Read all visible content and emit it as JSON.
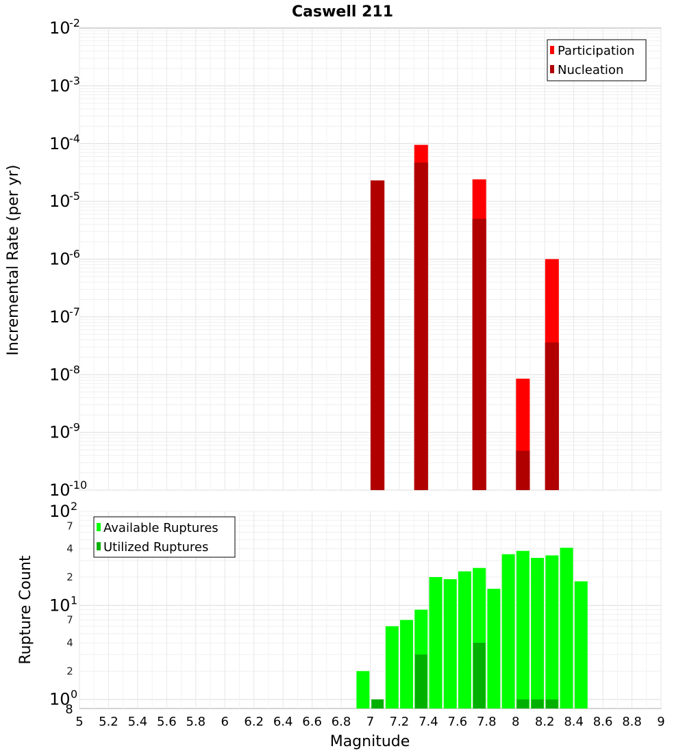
{
  "chart_data": [
    {
      "type": "bar",
      "title": "Caswell 211",
      "xlabel": "Magnitude",
      "ylabel": "Incremental Rate (per yr)",
      "yscale": "log",
      "xlim": [
        5,
        9
      ],
      "ylim": [
        1e-10,
        0.01
      ],
      "x_ticks": [
        "5",
        "5.2",
        "5.4",
        "5.6",
        "5.8",
        "6",
        "6.2",
        "6.4",
        "6.6",
        "6.8",
        "7",
        "7.2",
        "7.4",
        "7.6",
        "7.8",
        "8",
        "8.2",
        "8.4",
        "8.6",
        "8.8",
        "9"
      ],
      "y_ticks": [
        {
          "base": "10",
          "exp": "-2"
        },
        {
          "base": "10",
          "exp": "-3"
        },
        {
          "base": "10",
          "exp": "-4"
        },
        {
          "base": "10",
          "exp": "-5"
        },
        {
          "base": "10",
          "exp": "-6"
        },
        {
          "base": "10",
          "exp": "-7"
        },
        {
          "base": "10",
          "exp": "-8"
        },
        {
          "base": "10",
          "exp": "-9"
        },
        {
          "base": "10",
          "exp": "-10"
        }
      ],
      "legend": {
        "placement": "top-right"
      },
      "series": [
        {
          "name": "Participation",
          "color": "#ff0000",
          "points": [
            {
              "x": 7.05,
              "y": 2.3e-05
            },
            {
              "x": 7.35,
              "y": 9.5e-05
            },
            {
              "x": 7.75,
              "y": 2.4e-05
            },
            {
              "x": 8.05,
              "y": 8.5e-09
            },
            {
              "x": 8.25,
              "y": 1e-06
            }
          ]
        },
        {
          "name": "Nucleation",
          "color": "#b00000",
          "points": [
            {
              "x": 7.05,
              "y": 2.3e-05
            },
            {
              "x": 7.35,
              "y": 4.7e-05
            },
            {
              "x": 7.75,
              "y": 5e-06
            },
            {
              "x": 8.05,
              "y": 4.8e-10
            },
            {
              "x": 8.25,
              "y": 3.6e-08
            }
          ]
        }
      ]
    },
    {
      "type": "bar",
      "title": "",
      "xlabel": "Magnitude",
      "ylabel": "Rupture Count",
      "yscale": "log",
      "xlim": [
        5,
        9
      ],
      "ylim": [
        0.8,
        100
      ],
      "y_ticks": [
        {
          "value": 100,
          "base": "10",
          "exp": "2"
        },
        {
          "value": 70,
          "label": "7"
        },
        {
          "value": 40,
          "label": "4"
        },
        {
          "value": 20,
          "label": "2"
        },
        {
          "value": 10,
          "base": "10",
          "exp": "1"
        },
        {
          "value": 7,
          "label": "7"
        },
        {
          "value": 4,
          "label": "4"
        },
        {
          "value": 2,
          "label": "2"
        },
        {
          "value": 1,
          "base": "10",
          "exp": "0"
        },
        {
          "value": 0.8,
          "label": "8"
        }
      ],
      "legend": {
        "placement": "top-left"
      },
      "series": [
        {
          "name": "Available Ruptures",
          "color": "#00ff00",
          "points": [
            {
              "x": 6.95,
              "y": 2
            },
            {
              "x": 7.15,
              "y": 6
            },
            {
              "x": 7.25,
              "y": 7
            },
            {
              "x": 7.35,
              "y": 9
            },
            {
              "x": 7.45,
              "y": 20
            },
            {
              "x": 7.55,
              "y": 19
            },
            {
              "x": 7.65,
              "y": 23
            },
            {
              "x": 7.75,
              "y": 25
            },
            {
              "x": 7.85,
              "y": 15
            },
            {
              "x": 7.95,
              "y": 35
            },
            {
              "x": 8.05,
              "y": 38
            },
            {
              "x": 8.15,
              "y": 32
            },
            {
              "x": 8.25,
              "y": 34
            },
            {
              "x": 8.35,
              "y": 41
            },
            {
              "x": 8.45,
              "y": 18
            }
          ]
        },
        {
          "name": "Utilized Ruptures",
          "color": "#00b000",
          "points": [
            {
              "x": 7.05,
              "y": 1
            },
            {
              "x": 7.35,
              "y": 3
            },
            {
              "x": 7.75,
              "y": 4
            },
            {
              "x": 8.05,
              "y": 1
            },
            {
              "x": 8.15,
              "y": 1
            },
            {
              "x": 8.25,
              "y": 1
            }
          ]
        }
      ]
    }
  ]
}
